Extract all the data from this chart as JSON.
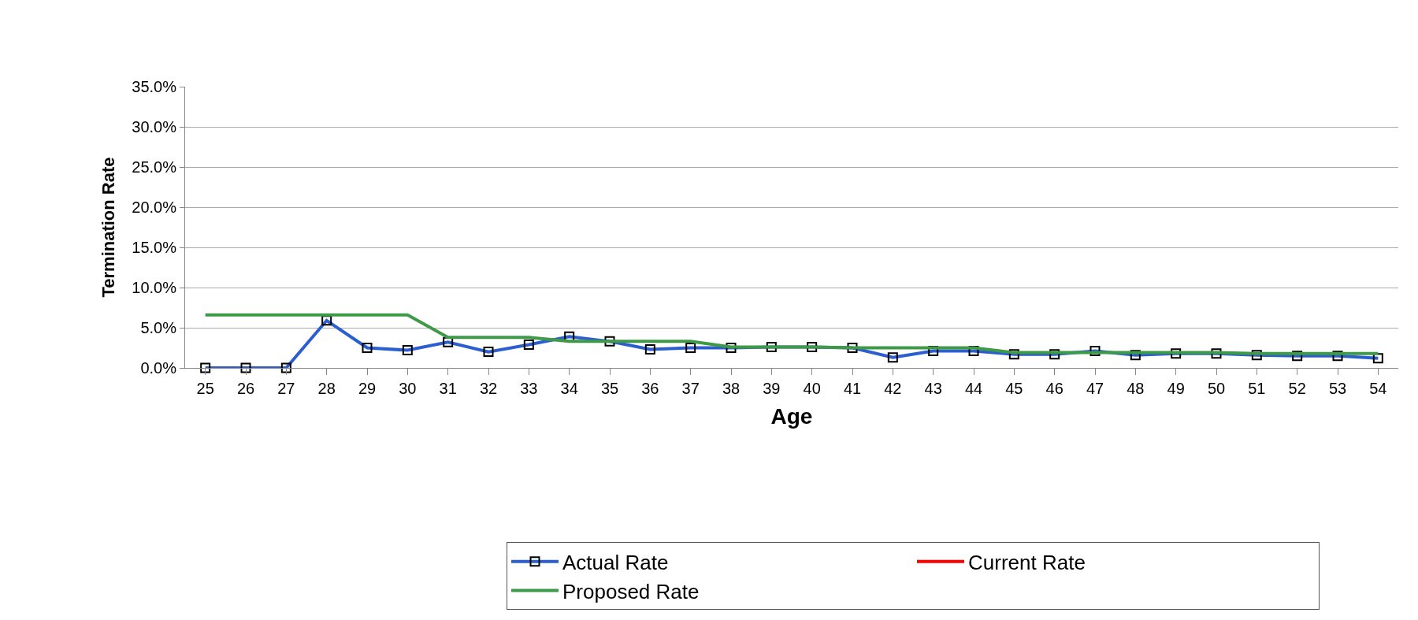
{
  "chart_data": {
    "type": "line",
    "xlabel": "Age",
    "ylabel": "Termination Rate",
    "categories": [
      "25",
      "26",
      "27",
      "28",
      "29",
      "30",
      "31",
      "32",
      "33",
      "34",
      "35",
      "36",
      "37",
      "38",
      "39",
      "40",
      "41",
      "42",
      "43",
      "44",
      "45",
      "46",
      "47",
      "48",
      "49",
      "50",
      "51",
      "52",
      "53",
      "54"
    ],
    "series": [
      {
        "name": "Actual Rate",
        "color": "#2b5fd0",
        "marker": "square",
        "values": [
          0.0,
          0.0,
          0.0,
          5.9,
          2.5,
          2.2,
          3.2,
          2.0,
          2.9,
          3.9,
          3.3,
          2.3,
          2.5,
          2.5,
          2.6,
          2.6,
          2.5,
          1.3,
          2.1,
          2.1,
          1.7,
          1.7,
          2.1,
          1.6,
          1.8,
          1.8,
          1.6,
          1.5,
          1.5,
          1.2
        ]
      },
      {
        "name": "Current Rate",
        "color": "#ff0000",
        "marker": "none",
        "values": [
          null,
          null,
          null,
          null,
          null,
          null,
          null,
          null,
          null,
          null,
          null,
          null,
          null,
          null,
          null,
          null,
          null,
          null,
          null,
          null,
          null,
          null,
          null,
          null,
          null,
          null,
          null,
          null,
          null,
          null
        ]
      },
      {
        "name": "Proposed Rate",
        "color": "#3f9a48",
        "marker": "none",
        "values": [
          6.6,
          6.6,
          6.6,
          6.6,
          6.6,
          6.6,
          3.8,
          3.8,
          3.8,
          3.3,
          3.3,
          3.3,
          3.3,
          2.6,
          2.6,
          2.6,
          2.5,
          2.5,
          2.5,
          2.5,
          1.9,
          1.9,
          1.9,
          1.9,
          1.9,
          1.9,
          1.8,
          1.8,
          1.8,
          1.8
        ]
      }
    ],
    "ylim": [
      0,
      35
    ],
    "yticks": [
      {
        "value": 0,
        "label": "0.0%"
      },
      {
        "value": 5,
        "label": "5.0%"
      },
      {
        "value": 10,
        "label": "10.0%"
      },
      {
        "value": 15,
        "label": "15.0%"
      },
      {
        "value": 20,
        "label": "20.0%"
      },
      {
        "value": 25,
        "label": "25.0%"
      },
      {
        "value": 30,
        "label": "30.0%"
      },
      {
        "value": 35,
        "label": "35.0%"
      }
    ],
    "grid": "y",
    "legend": "bottom",
    "line_style": "solid"
  }
}
